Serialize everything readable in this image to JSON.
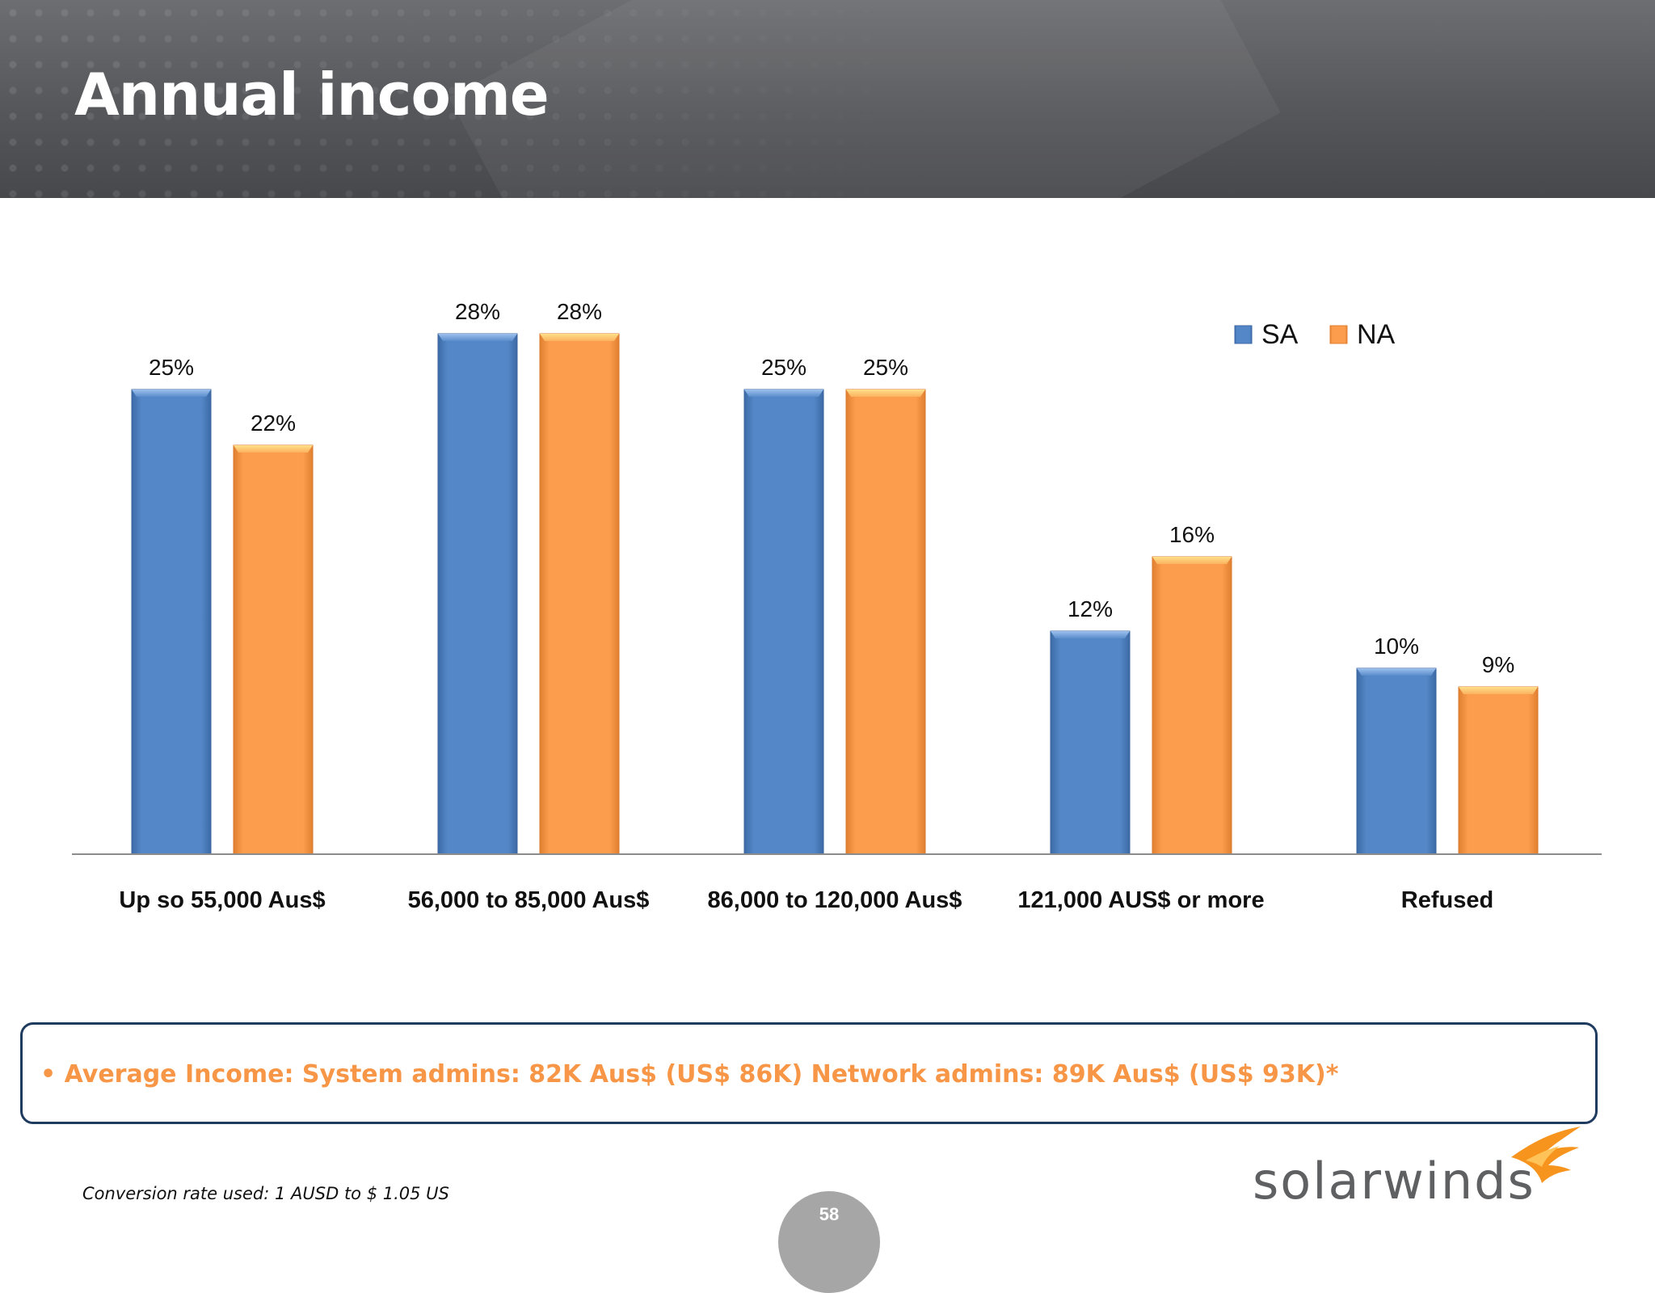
{
  "slide": {
    "title": "Annual income",
    "callout": "• Average Income:  System admins:  82K Aus$ (US$ 86K)  Network admins:  89K Aus$ (US$ 93K)*",
    "footnote": "Conversion rate used:  1 AUSD to $ 1.05 US",
    "page_number": "58",
    "logo_text": "solarwinds"
  },
  "colors": {
    "sa": "#4f81bd",
    "na": "#f79646",
    "callout_text": "#f79646",
    "callout_border": "#1f3b5e",
    "header": "#5a5b5f"
  },
  "chart_data": {
    "type": "bar",
    "categories": [
      "Up so 55,000 Aus$",
      "56,000 to 85,000 Aus$",
      "86,000 to 120,000 Aus$",
      "121,000 AUS$ or more",
      "Refused"
    ],
    "series": [
      {
        "name": "SA",
        "values": [
          25,
          28,
          25,
          12,
          10
        ],
        "labels": [
          "25%",
          "28%",
          "25%",
          "12%",
          "10%"
        ],
        "color": "#4f81bd"
      },
      {
        "name": "NA",
        "values": [
          22,
          28,
          25,
          16,
          9
        ],
        "labels": [
          "22%",
          "28%",
          "25%",
          "16%",
          "9%"
        ],
        "color": "#f79646"
      }
    ],
    "ylim": [
      0,
      28
    ],
    "grid": false,
    "legend": "top-right",
    "data_labels": true
  }
}
